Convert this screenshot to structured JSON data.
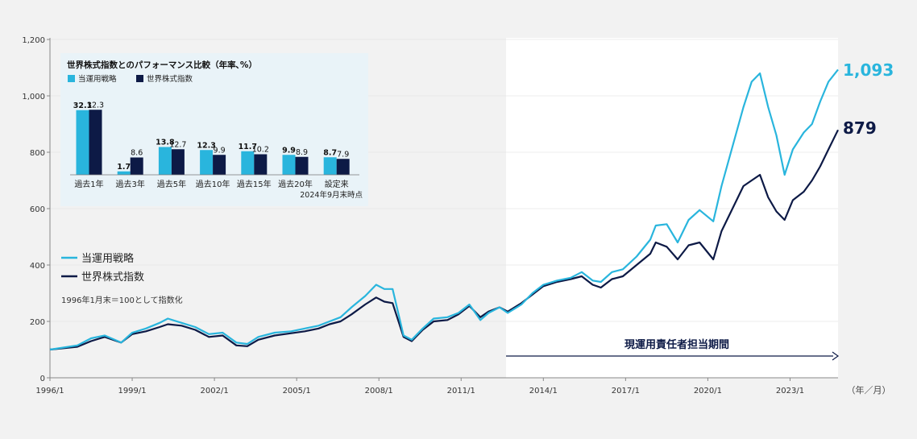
{
  "colors": {
    "strategy": "#29b5dd",
    "index": "#0d1a46",
    "panel": "#e9f3f8",
    "grid": "#cccccc"
  },
  "main": {
    "y_ticks": [
      "0",
      "200",
      "400",
      "600",
      "800",
      "1,000",
      "1,200"
    ],
    "x_ticks": [
      "1996/1",
      "1999/1",
      "2002/1",
      "2005/1",
      "2008/1",
      "2011/1",
      "2014/1",
      "2017/1",
      "2020/1",
      "2023/1"
    ],
    "x_unit": "（年／月）",
    "legend": {
      "strategy": "当運用戦略",
      "index": "世界株式指数"
    },
    "note": "1996年1月末＝100として指数化",
    "manager_period_label": "現運用責任者担当期間",
    "end_label_strategy": "1,093",
    "end_label_index": "879"
  },
  "inset": {
    "title": "世界株式指数とのパフォーマンス比較（年率､%）",
    "legend": {
      "strategy": "当運用戦略",
      "index": "世界株式指数"
    },
    "as_of": "2024年9月末時点"
  },
  "chart_data": [
    {
      "type": "line",
      "title": "",
      "xlabel": "（年／月）",
      "ylabel": "",
      "ylim": [
        0,
        1200
      ],
      "xlim": [
        1996.0,
        2024.75
      ],
      "manager_period_start": 2012.6,
      "series": [
        {
          "name": "当運用戦略",
          "points": [
            [
              1996.0,
              100
            ],
            [
              1997.0,
              115
            ],
            [
              1997.5,
              140
            ],
            [
              1998.0,
              150
            ],
            [
              1998.6,
              125
            ],
            [
              1999.0,
              160
            ],
            [
              1999.5,
              175
            ],
            [
              2000.0,
              195
            ],
            [
              2000.3,
              210
            ],
            [
              2000.8,
              195
            ],
            [
              2001.3,
              180
            ],
            [
              2001.8,
              155
            ],
            [
              2002.3,
              160
            ],
            [
              2002.8,
              125
            ],
            [
              2003.2,
              120
            ],
            [
              2003.6,
              145
            ],
            [
              2004.2,
              160
            ],
            [
              2004.8,
              165
            ],
            [
              2005.3,
              175
            ],
            [
              2005.8,
              185
            ],
            [
              2006.2,
              200
            ],
            [
              2006.6,
              215
            ],
            [
              2007.0,
              250
            ],
            [
              2007.5,
              290
            ],
            [
              2007.9,
              330
            ],
            [
              2008.2,
              315
            ],
            [
              2008.5,
              315
            ],
            [
              2008.9,
              150
            ],
            [
              2009.2,
              135
            ],
            [
              2009.6,
              175
            ],
            [
              2010.0,
              210
            ],
            [
              2010.5,
              215
            ],
            [
              2010.9,
              230
            ],
            [
              2011.3,
              260
            ],
            [
              2011.7,
              205
            ],
            [
              2012.0,
              230
            ],
            [
              2012.4,
              250
            ],
            [
              2012.7,
              230
            ],
            [
              2013.2,
              260
            ],
            [
              2013.6,
              300
            ],
            [
              2014.0,
              330
            ],
            [
              2014.5,
              345
            ],
            [
              2015.0,
              355
            ],
            [
              2015.4,
              375
            ],
            [
              2015.8,
              345
            ],
            [
              2016.1,
              340
            ],
            [
              2016.5,
              375
            ],
            [
              2016.9,
              385
            ],
            [
              2017.4,
              430
            ],
            [
              2017.9,
              490
            ],
            [
              2018.1,
              540
            ],
            [
              2018.5,
              545
            ],
            [
              2018.9,
              480
            ],
            [
              2019.3,
              560
            ],
            [
              2019.7,
              595
            ],
            [
              2020.2,
              555
            ],
            [
              2020.5,
              680
            ],
            [
              2020.9,
              820
            ],
            [
              2021.3,
              960
            ],
            [
              2021.6,
              1050
            ],
            [
              2021.9,
              1080
            ],
            [
              2022.2,
              960
            ],
            [
              2022.5,
              860
            ],
            [
              2022.8,
              720
            ],
            [
              2023.1,
              810
            ],
            [
              2023.5,
              870
            ],
            [
              2023.8,
              900
            ],
            [
              2024.1,
              980
            ],
            [
              2024.4,
              1050
            ],
            [
              2024.75,
              1093
            ]
          ]
        },
        {
          "name": "世界株式指数",
          "points": [
            [
              1996.0,
              100
            ],
            [
              1997.0,
              110
            ],
            [
              1997.5,
              130
            ],
            [
              1998.0,
              145
            ],
            [
              1998.6,
              125
            ],
            [
              1999.0,
              155
            ],
            [
              1999.5,
              165
            ],
            [
              2000.0,
              180
            ],
            [
              2000.3,
              190
            ],
            [
              2000.8,
              185
            ],
            [
              2001.3,
              170
            ],
            [
              2001.8,
              145
            ],
            [
              2002.3,
              150
            ],
            [
              2002.8,
              115
            ],
            [
              2003.2,
              112
            ],
            [
              2003.6,
              135
            ],
            [
              2004.2,
              150
            ],
            [
              2004.8,
              158
            ],
            [
              2005.3,
              165
            ],
            [
              2005.8,
              175
            ],
            [
              2006.2,
              190
            ],
            [
              2006.6,
              200
            ],
            [
              2007.0,
              225
            ],
            [
              2007.5,
              260
            ],
            [
              2007.9,
              285
            ],
            [
              2008.2,
              270
            ],
            [
              2008.5,
              265
            ],
            [
              2008.9,
              145
            ],
            [
              2009.2,
              130
            ],
            [
              2009.6,
              170
            ],
            [
              2010.0,
              200
            ],
            [
              2010.5,
              205
            ],
            [
              2010.9,
              225
            ],
            [
              2011.3,
              255
            ],
            [
              2011.7,
              215
            ],
            [
              2012.0,
              235
            ],
            [
              2012.4,
              250
            ],
            [
              2012.7,
              235
            ],
            [
              2013.2,
              265
            ],
            [
              2013.6,
              295
            ],
            [
              2014.0,
              325
            ],
            [
              2014.5,
              340
            ],
            [
              2015.0,
              350
            ],
            [
              2015.4,
              360
            ],
            [
              2015.8,
              330
            ],
            [
              2016.1,
              320
            ],
            [
              2016.5,
              350
            ],
            [
              2016.9,
              360
            ],
            [
              2017.4,
              400
            ],
            [
              2017.9,
              440
            ],
            [
              2018.1,
              480
            ],
            [
              2018.5,
              465
            ],
            [
              2018.9,
              420
            ],
            [
              2019.3,
              470
            ],
            [
              2019.7,
              480
            ],
            [
              2020.2,
              420
            ],
            [
              2020.5,
              520
            ],
            [
              2020.9,
              600
            ],
            [
              2021.3,
              680
            ],
            [
              2021.6,
              700
            ],
            [
              2021.9,
              720
            ],
            [
              2022.2,
              640
            ],
            [
              2022.5,
              590
            ],
            [
              2022.8,
              560
            ],
            [
              2023.1,
              630
            ],
            [
              2023.5,
              660
            ],
            [
              2023.8,
              700
            ],
            [
              2024.1,
              750
            ],
            [
              2024.4,
              810
            ],
            [
              2024.75,
              879
            ]
          ]
        }
      ]
    },
    {
      "type": "bar",
      "title": "世界株式指数とのパフォーマンス比較（年率､%）",
      "categories": [
        "過去1年",
        "過去3年",
        "過去5年",
        "過去10年",
        "過去15年",
        "過去20年",
        "設定来"
      ],
      "series": [
        {
          "name": "当運用戦略",
          "values": [
            32.1,
            1.7,
            13.8,
            12.3,
            11.7,
            9.9,
            8.7
          ]
        },
        {
          "name": "世界株式指数",
          "values": [
            32.3,
            8.6,
            12.7,
            9.9,
            10.2,
            8.9,
            7.9
          ]
        }
      ]
    }
  ]
}
